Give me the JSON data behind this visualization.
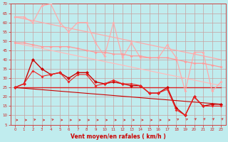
{
  "xlabel": "Vent moyen/en rafales ( km/h )",
  "xlim": [
    -0.5,
    23.5
  ],
  "ylim": [
    5,
    70
  ],
  "yticks": [
    5,
    10,
    15,
    20,
    25,
    30,
    35,
    40,
    45,
    50,
    55,
    60,
    65,
    70
  ],
  "xticks": [
    0,
    1,
    2,
    3,
    4,
    5,
    6,
    7,
    8,
    9,
    10,
    11,
    12,
    13,
    14,
    15,
    16,
    17,
    18,
    19,
    20,
    21,
    22,
    23
  ],
  "bg_color": "#c0ecee",
  "grid_color": "#c8a0a0",
  "series": [
    {
      "x": [
        0,
        1,
        2,
        3,
        4,
        5,
        6,
        7,
        8,
        9,
        10,
        11,
        12,
        13,
        14,
        15,
        16,
        17,
        18,
        19,
        20,
        21,
        22,
        23
      ],
      "y": [
        63,
        62,
        61,
        60,
        59,
        58,
        57,
        56,
        55,
        54,
        53,
        52,
        51,
        50,
        49,
        48,
        47,
        46,
        45,
        44,
        43,
        42,
        41,
        40
      ],
      "color": "#ffaaaa",
      "lw": 0.9,
      "marker": null,
      "ms": 0
    },
    {
      "x": [
        0,
        1,
        2,
        3,
        4,
        5,
        6,
        7,
        8,
        9,
        10,
        11,
        12,
        13,
        14,
        15,
        16,
        17,
        18,
        19,
        20,
        21,
        22,
        23
      ],
      "y": [
        49,
        48,
        47,
        46,
        45,
        44,
        43,
        42,
        41,
        40,
        39,
        38,
        37,
        36,
        35,
        34,
        33,
        32,
        31,
        30,
        29,
        28,
        27,
        26
      ],
      "color": "#ffbbbb",
      "lw": 0.9,
      "marker": null,
      "ms": 0
    },
    {
      "x": [
        0,
        1,
        2,
        3,
        4,
        5,
        6,
        7,
        8,
        9,
        10,
        11,
        12,
        13,
        14,
        15,
        16,
        17,
        18,
        19,
        20,
        21,
        22,
        23
      ],
      "y": [
        63,
        63,
        60,
        69,
        70,
        60,
        55,
        60,
        60,
        49,
        42,
        60,
        41,
        49,
        41,
        41,
        41,
        48,
        41,
        23,
        44,
        44,
        23,
        28
      ],
      "color": "#ffaaaa",
      "lw": 0.9,
      "marker": "D",
      "ms": 2.0
    },
    {
      "x": [
        0,
        1,
        2,
        3,
        4,
        5,
        6,
        7,
        8,
        9,
        10,
        11,
        12,
        13,
        14,
        15,
        16,
        17,
        18,
        19,
        20,
        21,
        22,
        23
      ],
      "y": [
        49,
        49,
        48,
        47,
        47,
        47,
        47,
        46,
        45,
        44,
        44,
        43,
        43,
        42,
        42,
        41,
        41,
        41,
        40,
        39,
        38,
        38,
        37,
        36
      ],
      "color": "#ff9999",
      "lw": 0.9,
      "marker": "D",
      "ms": 2.0
    },
    {
      "x": [
        0,
        1,
        2,
        3,
        4,
        5,
        6,
        7,
        8,
        9,
        10,
        11,
        12,
        13,
        14,
        15,
        16,
        17,
        18,
        19,
        20,
        21,
        22,
        23
      ],
      "y": [
        25,
        25,
        25,
        25,
        25,
        25,
        25,
        25,
        25,
        25,
        25,
        25,
        25,
        25,
        25,
        25,
        25,
        25,
        25,
        25,
        25,
        25,
        25,
        25
      ],
      "color": "#dd2222",
      "lw": 1.0,
      "marker": null,
      "ms": 0
    },
    {
      "x": [
        0,
        1,
        2,
        3,
        4,
        5,
        6,
        7,
        8,
        9,
        10,
        11,
        12,
        13,
        14,
        15,
        16,
        17,
        18,
        19,
        20,
        21,
        22,
        23
      ],
      "y": [
        25,
        27,
        40,
        35,
        32,
        33,
        30,
        33,
        33,
        28,
        27,
        28,
        27,
        26,
        26,
        22,
        22,
        25,
        14,
        10,
        20,
        15,
        16,
        16
      ],
      "color": "#cc0000",
      "lw": 1.0,
      "marker": "D",
      "ms": 2.5
    },
    {
      "x": [
        0,
        1,
        2,
        3,
        4,
        5,
        6,
        7,
        8,
        9,
        10,
        11,
        12,
        13,
        14,
        15,
        16,
        17,
        18,
        19,
        20,
        21,
        22,
        23
      ],
      "y": [
        25,
        27,
        34,
        31,
        32,
        33,
        28,
        32,
        32,
        26,
        27,
        29,
        27,
        27,
        26,
        22,
        22,
        24,
        13,
        10,
        20,
        15,
        15,
        15
      ],
      "color": "#ee2222",
      "lw": 0.8,
      "marker": "D",
      "ms": 2.0
    },
    {
      "x": [
        0,
        23
      ],
      "y": [
        25,
        16
      ],
      "color": "#cc0000",
      "lw": 0.8,
      "marker": null,
      "ms": 0
    }
  ],
  "arrow_color": "#cc3333",
  "arrow_angles": [
    0,
    0,
    15,
    0,
    15,
    0,
    0,
    0,
    0,
    0,
    0,
    0,
    0,
    0,
    0,
    0,
    0,
    0,
    30,
    30,
    45,
    45,
    45,
    45
  ]
}
